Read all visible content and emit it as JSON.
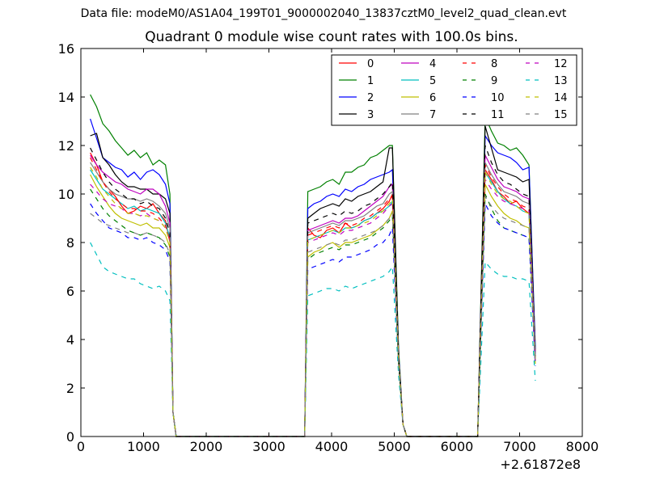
{
  "suptitle": "Data file: modeM0/AS1A04_199T01_9000002040_13837cztM0_level2_quad_clean.evt",
  "chart_data": {
    "type": "line",
    "title": "Quadrant 0 module wise count rates with 100.0s bins.",
    "xlabel": "",
    "ylabel": "",
    "x_offset_label": "+2.61872e8",
    "xlim": [
      0,
      8000
    ],
    "ylim": [
      0,
      16
    ],
    "xticks": [
      0,
      1000,
      2000,
      3000,
      4000,
      5000,
      6000,
      7000,
      8000
    ],
    "yticks": [
      0,
      2,
      4,
      6,
      8,
      10,
      12,
      14,
      16
    ],
    "legend_position": "upper-right",
    "x": [
      150,
      250,
      350,
      450,
      550,
      650,
      750,
      850,
      950,
      1050,
      1150,
      1250,
      1350,
      1420,
      1470,
      1520,
      3520,
      3570,
      3620,
      3720,
      3820,
      3920,
      4020,
      4120,
      4220,
      4320,
      4420,
      4520,
      4620,
      4720,
      4820,
      4920,
      4970,
      5070,
      5140,
      5200,
      6250,
      6330,
      6450,
      6550,
      6650,
      6750,
      6850,
      6950,
      7050,
      7150,
      7250
    ],
    "series": [
      {
        "name": "0",
        "color": "#ff0000",
        "dash": "solid",
        "values": [
          11.7,
          11.2,
          10.5,
          10.2,
          9.9,
          9.5,
          9.2,
          9.3,
          9.5,
          9.4,
          9.6,
          9.2,
          8.9,
          8.0,
          1.0,
          0,
          0,
          0,
          8.6,
          8.3,
          8.2,
          8.5,
          8.6,
          8.4,
          8.8,
          8.6,
          8.7,
          8.9,
          9.0,
          9.2,
          9.4,
          9.7,
          10.0,
          3.2,
          0.5,
          0,
          0,
          0,
          11.0,
          10.6,
          10.1,
          9.9,
          9.6,
          9.7,
          9.4,
          9.2,
          3.3
        ]
      },
      {
        "name": "1",
        "color": "#008000",
        "dash": "solid",
        "values": [
          14.1,
          13.6,
          12.9,
          12.6,
          12.2,
          11.9,
          11.6,
          11.8,
          11.5,
          11.7,
          11.2,
          11.4,
          11.2,
          10.0,
          1.0,
          0,
          0,
          0,
          10.1,
          10.2,
          10.3,
          10.5,
          10.6,
          10.4,
          10.9,
          10.9,
          11.1,
          11.2,
          11.5,
          11.6,
          11.8,
          12.0,
          12.0,
          3.6,
          0.5,
          0,
          0,
          0,
          13.2,
          12.6,
          12.1,
          12.0,
          11.8,
          11.9,
          11.6,
          11.2,
          3.7
        ]
      },
      {
        "name": "2",
        "color": "#0000ff",
        "dash": "solid",
        "values": [
          13.1,
          12.3,
          11.5,
          11.3,
          11.1,
          11.0,
          10.7,
          10.9,
          10.6,
          10.9,
          11.0,
          10.8,
          10.4,
          9.6,
          1.0,
          0,
          0,
          0,
          9.4,
          9.6,
          9.7,
          9.9,
          10.0,
          9.9,
          10.2,
          10.1,
          10.3,
          10.4,
          10.6,
          10.7,
          10.8,
          10.9,
          11.0,
          3.4,
          0.5,
          0,
          0,
          0,
          12.4,
          12.0,
          11.7,
          11.6,
          11.5,
          11.3,
          11.0,
          11.1,
          3.6
        ]
      },
      {
        "name": "3",
        "color": "#000000",
        "dash": "solid",
        "values": [
          12.4,
          12.5,
          11.5,
          11.2,
          10.8,
          10.5,
          10.3,
          10.3,
          10.2,
          10.2,
          10.0,
          10.0,
          9.8,
          9.2,
          1.0,
          0,
          0,
          0,
          9.0,
          9.2,
          9.4,
          9.5,
          9.6,
          9.5,
          9.8,
          9.7,
          9.9,
          10.0,
          10.1,
          10.3,
          10.5,
          11.9,
          11.9,
          3.3,
          0.5,
          0,
          0,
          0,
          12.8,
          11.9,
          11.0,
          10.9,
          10.8,
          10.7,
          10.5,
          10.6,
          3.4
        ]
      },
      {
        "name": "4",
        "color": "#bf00bf",
        "dash": "solid",
        "values": [
          11.6,
          11.2,
          10.9,
          10.7,
          10.5,
          10.4,
          10.2,
          10.1,
          10.0,
          10.2,
          10.2,
          10.0,
          9.5,
          8.8,
          1.0,
          0,
          0,
          0,
          8.5,
          8.6,
          8.7,
          8.8,
          8.9,
          8.8,
          9.0,
          9.0,
          9.1,
          9.3,
          9.5,
          9.7,
          9.9,
          10.3,
          10.4,
          3.2,
          0.5,
          0,
          0,
          0,
          11.6,
          11.1,
          10.6,
          10.3,
          10.2,
          10.1,
          9.9,
          9.8,
          3.3
        ]
      },
      {
        "name": "5",
        "color": "#00bfbf",
        "dash": "solid",
        "values": [
          11.0,
          10.6,
          10.2,
          10.0,
          9.8,
          9.6,
          9.4,
          9.5,
          9.3,
          9.4,
          9.3,
          9.2,
          8.8,
          8.2,
          1.0,
          0,
          0,
          0,
          8.1,
          8.2,
          8.3,
          8.4,
          8.5,
          8.4,
          8.6,
          8.6,
          8.7,
          8.9,
          9.0,
          9.2,
          9.3,
          9.5,
          9.7,
          3.1,
          0.5,
          0,
          0,
          0,
          10.9,
          10.5,
          10.1,
          9.8,
          9.6,
          9.5,
          9.3,
          9.2,
          3.1
        ]
      },
      {
        "name": "6",
        "color": "#bfbf00",
        "dash": "solid",
        "values": [
          10.8,
          10.3,
          9.9,
          9.5,
          9.2,
          9.0,
          8.9,
          8.8,
          8.7,
          8.8,
          8.6,
          8.6,
          8.3,
          7.8,
          1.0,
          0,
          0,
          0,
          7.4,
          7.6,
          7.7,
          7.9,
          8.0,
          7.8,
          8.0,
          8.0,
          8.1,
          8.2,
          8.3,
          8.5,
          8.7,
          9.0,
          9.3,
          3.0,
          0.5,
          0,
          0,
          0,
          10.4,
          9.9,
          9.5,
          9.2,
          9.0,
          8.9,
          8.7,
          8.6,
          3.0
        ]
      },
      {
        "name": "7",
        "color": "#808080",
        "dash": "solid",
        "values": [
          11.3,
          10.9,
          10.5,
          10.2,
          10.0,
          9.9,
          9.8,
          9.8,
          9.7,
          9.8,
          9.7,
          9.5,
          9.2,
          8.6,
          1.0,
          0,
          0,
          0,
          8.4,
          8.5,
          8.6,
          8.7,
          8.8,
          8.7,
          8.9,
          8.9,
          9.0,
          9.1,
          9.3,
          9.5,
          9.6,
          10.0,
          10.1,
          3.2,
          0.5,
          0,
          0,
          0,
          11.3,
          10.8,
          10.4,
          10.1,
          10.0,
          9.9,
          9.7,
          9.6,
          3.2
        ]
      },
      {
        "name": "8",
        "color": "#ff0000",
        "dash": "dashed",
        "values": [
          11.5,
          11.0,
          10.5,
          10.1,
          9.8,
          9.6,
          9.4,
          9.4,
          9.3,
          9.3,
          9.2,
          9.0,
          8.7,
          8.1,
          1.0,
          0,
          0,
          0,
          8.3,
          8.4,
          8.5,
          8.6,
          8.7,
          8.6,
          8.8,
          8.7,
          8.8,
          9.0,
          9.1,
          9.3,
          9.5,
          9.8,
          9.9,
          3.2,
          0.5,
          0,
          0,
          0,
          11.2,
          10.7,
          10.3,
          10.0,
          9.8,
          9.7,
          9.5,
          9.4,
          3.2
        ]
      },
      {
        "name": "9",
        "color": "#008000",
        "dash": "dashed",
        "values": [
          10.2,
          9.8,
          9.4,
          9.1,
          8.9,
          8.7,
          8.5,
          8.4,
          8.3,
          8.4,
          8.3,
          8.2,
          7.9,
          7.4,
          1.0,
          0,
          0,
          0,
          7.3,
          7.5,
          7.6,
          7.7,
          7.8,
          7.7,
          7.9,
          7.9,
          8.0,
          8.1,
          8.2,
          8.4,
          8.6,
          8.9,
          9.1,
          3.0,
          0.5,
          0,
          0,
          0,
          10.0,
          9.4,
          8.9,
          8.6,
          8.5,
          8.4,
          8.3,
          8.2,
          3.0
        ]
      },
      {
        "name": "10",
        "color": "#0000ff",
        "dash": "dashed",
        "values": [
          9.6,
          9.2,
          8.9,
          8.6,
          8.5,
          8.4,
          8.2,
          8.2,
          8.1,
          8.2,
          8.0,
          7.9,
          7.7,
          7.2,
          1.0,
          0,
          0,
          0,
          6.9,
          7.0,
          7.1,
          7.2,
          7.3,
          7.2,
          7.4,
          7.4,
          7.5,
          7.6,
          7.7,
          7.9,
          8.0,
          8.3,
          8.6,
          2.9,
          0.5,
          0,
          0,
          0,
          9.6,
          9.1,
          8.8,
          8.6,
          8.5,
          8.4,
          8.3,
          8.2,
          2.9
        ]
      },
      {
        "name": "11",
        "color": "#000000",
        "dash": "dashed",
        "values": [
          11.9,
          11.4,
          10.9,
          10.5,
          10.2,
          10.0,
          9.8,
          9.8,
          9.6,
          9.7,
          9.5,
          9.4,
          9.0,
          8.4,
          1.0,
          0,
          0,
          0,
          8.8,
          8.9,
          9.0,
          9.1,
          9.2,
          9.1,
          9.3,
          9.2,
          9.3,
          9.5,
          9.6,
          9.8,
          10.0,
          10.3,
          10.5,
          3.3,
          0.5,
          0,
          0,
          0,
          12.0,
          11.3,
          10.8,
          10.5,
          10.4,
          10.2,
          10.0,
          9.9,
          3.3
        ]
      },
      {
        "name": "12",
        "color": "#bf00bf",
        "dash": "dashed",
        "values": [
          10.4,
          10.1,
          9.8,
          9.6,
          9.5,
          9.4,
          9.2,
          9.2,
          9.1,
          9.2,
          9.0,
          8.9,
          8.6,
          8.1,
          1.0,
          0,
          0,
          0,
          8.0,
          8.1,
          8.2,
          8.3,
          8.4,
          8.3,
          8.5,
          8.5,
          8.6,
          8.7,
          8.8,
          9.0,
          9.2,
          9.5,
          9.6,
          3.1,
          0.5,
          0,
          0,
          0,
          10.6,
          10.2,
          9.9,
          9.7,
          9.6,
          9.5,
          9.4,
          9.3,
          3.1
        ]
      },
      {
        "name": "13",
        "color": "#00bfbf",
        "dash": "dashed",
        "values": [
          8.0,
          7.5,
          7.0,
          6.8,
          6.7,
          6.6,
          6.5,
          6.5,
          6.3,
          6.2,
          6.1,
          6.2,
          6.0,
          5.6,
          1.0,
          0,
          0,
          0,
          5.8,
          5.9,
          6.0,
          6.1,
          6.1,
          6.0,
          6.2,
          6.1,
          6.2,
          6.3,
          6.4,
          6.5,
          6.6,
          6.8,
          7.0,
          2.5,
          0.5,
          0,
          0,
          0,
          7.2,
          6.9,
          6.7,
          6.6,
          6.6,
          6.5,
          6.5,
          6.4,
          2.3
        ]
      },
      {
        "name": "14",
        "color": "#bfbf00",
        "dash": "dashed",
        "values": [
          11.1,
          10.7,
          10.2,
          9.9,
          9.6,
          9.4,
          9.2,
          9.2,
          9.1,
          9.1,
          9.0,
          8.9,
          8.6,
          8.0,
          1.0,
          0,
          0,
          0,
          8.1,
          8.2,
          8.3,
          8.4,
          8.5,
          8.4,
          8.6,
          8.6,
          8.7,
          8.8,
          8.9,
          9.1,
          9.3,
          9.6,
          9.8,
          3.1,
          0.5,
          0,
          0,
          0,
          10.9,
          10.4,
          10.0,
          9.8,
          9.7,
          9.5,
          9.3,
          9.2,
          3.1
        ]
      },
      {
        "name": "15",
        "color": "#808080",
        "dash": "dashed",
        "values": [
          9.2,
          9.0,
          8.8,
          8.7,
          8.6,
          8.5,
          8.4,
          8.4,
          8.3,
          8.4,
          8.3,
          8.2,
          8.0,
          7.5,
          1.0,
          0,
          0,
          0,
          7.6,
          7.7,
          7.8,
          7.9,
          8.0,
          7.9,
          8.1,
          8.1,
          8.2,
          8.3,
          8.4,
          8.5,
          8.7,
          9.0,
          9.2,
          3.0,
          0.5,
          0,
          0,
          0,
          9.9,
          9.5,
          9.2,
          9.0,
          8.9,
          8.8,
          8.7,
          8.6,
          3.0
        ]
      }
    ]
  }
}
